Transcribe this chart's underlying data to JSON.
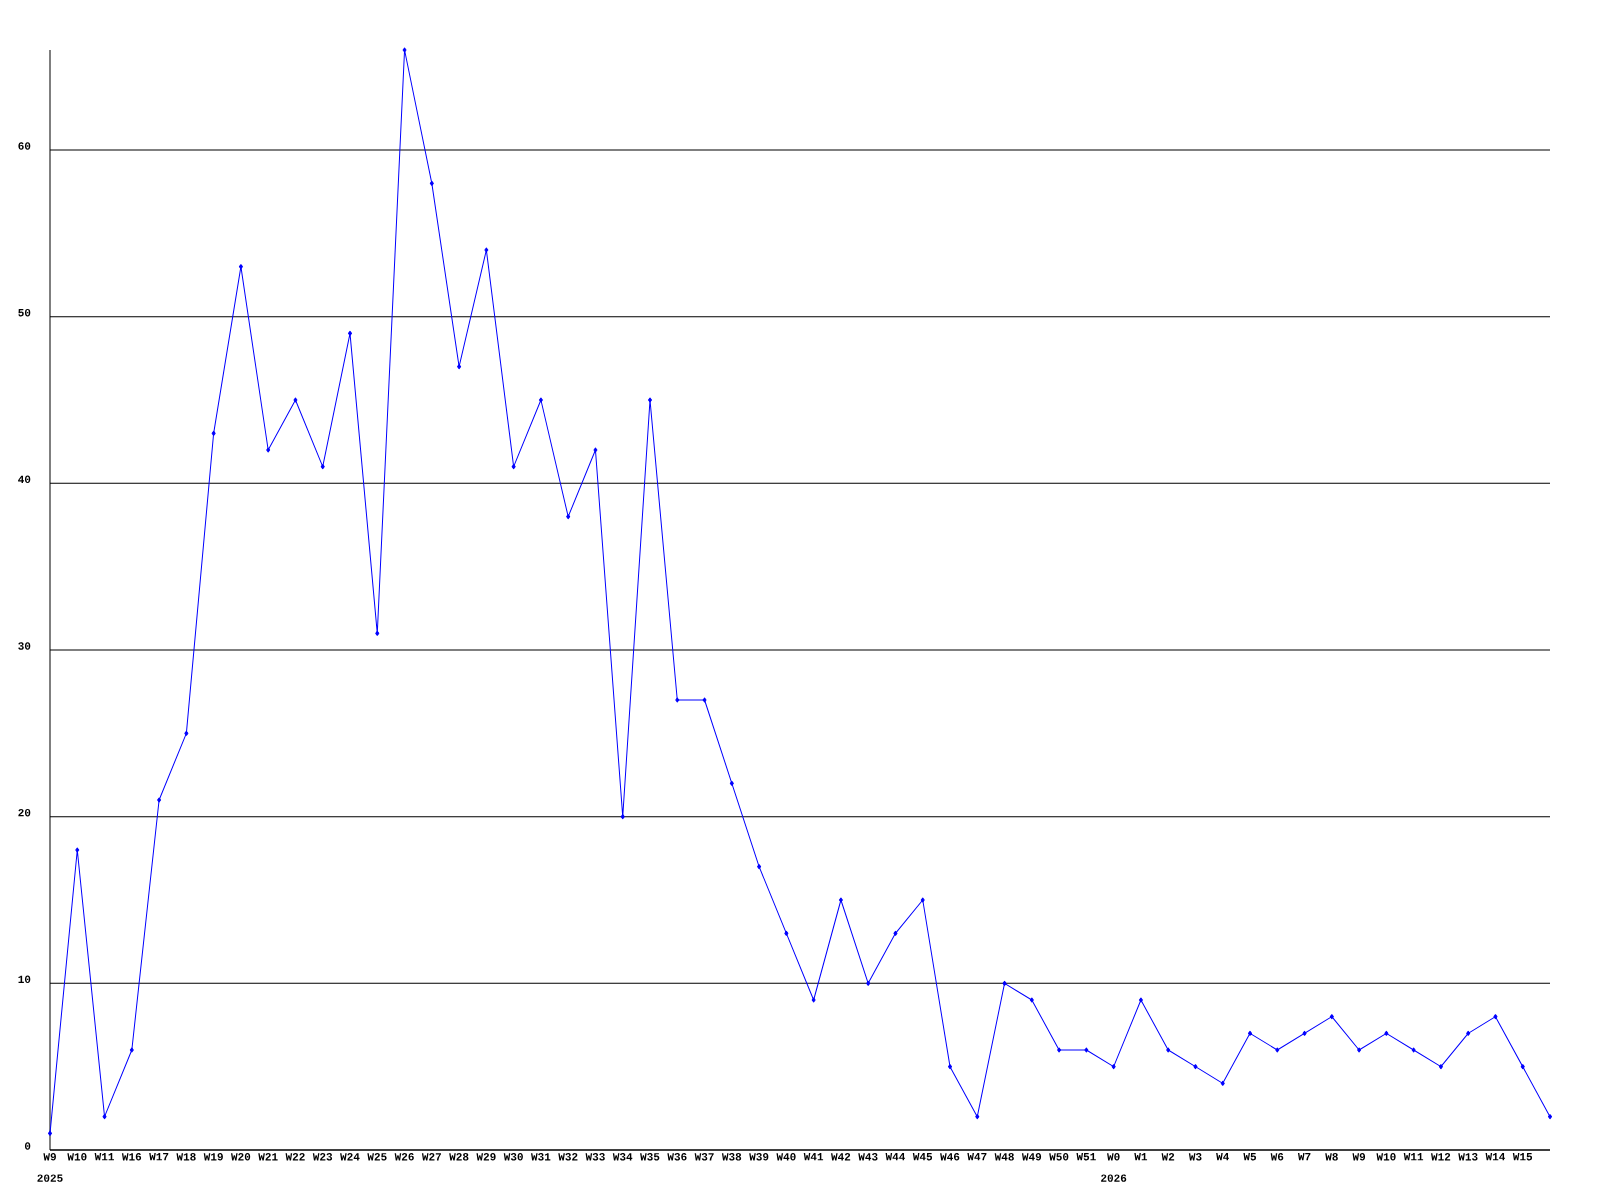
{
  "chart_data": {
    "type": "line",
    "categories": [
      "W9",
      "W10",
      "W11",
      "W16",
      "W17",
      "W18",
      "W19",
      "W20",
      "W21",
      "W22",
      "W23",
      "W24",
      "W25",
      "W26",
      "W27",
      "W28",
      "W29",
      "W30",
      "W31",
      "W32",
      "W33",
      "W34",
      "W35",
      "W36",
      "W37",
      "W38",
      "W39",
      "W40",
      "W41",
      "W42",
      "W43",
      "W44",
      "W45",
      "W46",
      "W47",
      "W48",
      "W49",
      "W50",
      "W51",
      "W0",
      "W1",
      "W2",
      "W3",
      "W4",
      "W5",
      "W6",
      "W7",
      "W8",
      "W9",
      "W10",
      "W11",
      "W12",
      "W13",
      "W14",
      "W15",
      null
    ],
    "values": [
      1,
      18,
      2,
      6,
      21,
      25,
      43,
      53,
      42,
      45,
      41,
      49,
      31,
      66,
      58,
      47,
      54,
      41,
      45,
      38,
      42,
      20,
      45,
      27,
      27,
      22,
      17,
      13,
      9,
      15,
      10,
      13,
      15,
      5,
      2,
      10,
      9,
      6,
      6,
      5,
      9,
      6,
      5,
      4,
      7,
      6,
      7,
      8,
      6,
      7,
      6,
      5,
      7,
      8,
      5,
      2
    ],
    "color": "#0000ff",
    "marker": "diamond",
    "ylim": [
      0,
      66
    ],
    "yticks": [
      0,
      10,
      20,
      30,
      40,
      50,
      60
    ],
    "grid": "y",
    "annotations": [
      "2025",
      "2026"
    ]
  }
}
